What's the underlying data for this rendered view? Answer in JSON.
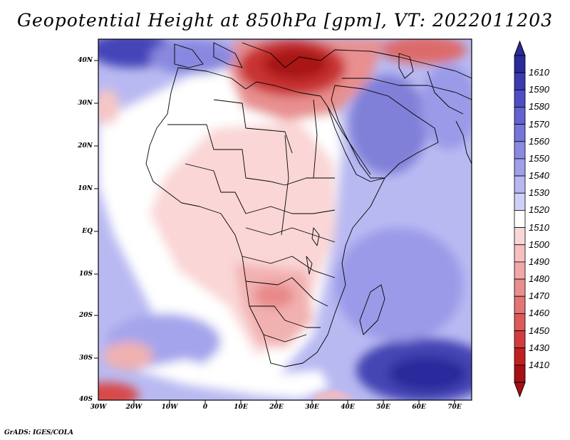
{
  "title": "Geopotential Height at 850hPa [gpm], VT: 2022011203",
  "footer": "GrADS: IGES/COLA",
  "latitude_labels": [
    "40N",
    "30N",
    "20N",
    "10N",
    "EQ",
    "10S",
    "20S",
    "30S",
    "40S"
  ],
  "longitude_labels": [
    "30W",
    "20W",
    "10W",
    "0",
    "10E",
    "20E",
    "30E",
    "40E",
    "50E",
    "60E",
    "70E"
  ],
  "colorbar": {
    "labels": [
      "1610",
      "1590",
      "1580",
      "1570",
      "1560",
      "1550",
      "1540",
      "1530",
      "1520",
      "1510",
      "1500",
      "1490",
      "1480",
      "1470",
      "1460",
      "1450",
      "1430",
      "1410"
    ],
    "colors": [
      "#2a2a9a",
      "#3b3bb0",
      "#4e4ec4",
      "#6262d0",
      "#7676da",
      "#8a8ae2",
      "#9f9fea",
      "#b7b7f1",
      "#d0d0f7",
      "#ffffff",
      "#fad7d7",
      "#f6c0c0",
      "#f0a8a8",
      "#ea8f8f",
      "#e37575",
      "#dc5a5a",
      "#d13d3d",
      "#c02020",
      "#a50f15"
    ]
  },
  "map": {
    "variable": "Geopotential Height",
    "level": "850hPa",
    "units": "gpm",
    "valid_time": "2022011203",
    "lon_range": [
      -30,
      75
    ],
    "lat_range": [
      -40,
      45
    ]
  }
}
